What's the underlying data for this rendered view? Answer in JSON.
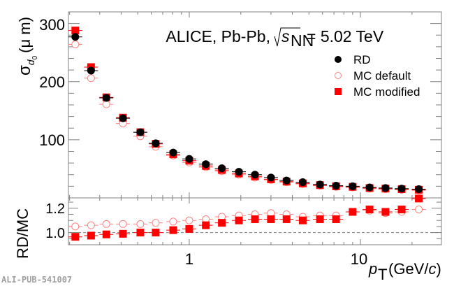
{
  "chart_data": [
    {
      "type": "scatter",
      "panel": "top",
      "title": "ALICE, Pb-Pb,",
      "title_energy": "= 5.02 TeV",
      "title_sqrt_symbol": "s",
      "title_sqrt_subscript": "NN",
      "xlabel": "p",
      "xlabel_subscript": "T",
      "xlabel_unit_open": "(GeV/",
      "xlabel_unit_c": "c",
      "xlabel_unit_close": ")",
      "ylabel_symbol": "σ",
      "ylabel_subscript": "d",
      "ylabel_subsubscript": "0",
      "ylabel_unit": "(μ m)",
      "xscale": "log",
      "xlim": [
        0.197,
        29.7
      ],
      "ylim": [
        0,
        320
      ],
      "yticks": [
        100,
        200,
        300
      ],
      "ytick_labels": [
        "100",
        "200",
        "300"
      ],
      "legend_position": "top-right",
      "x": [
        0.216,
        0.267,
        0.328,
        0.41,
        0.518,
        0.637,
        0.806,
        1.0,
        1.25,
        1.55,
        1.95,
        2.42,
        3.0,
        3.7,
        4.6,
        5.8,
        7.2,
        9.0,
        11.3,
        14.0,
        17.4,
        21.9
      ],
      "series": [
        {
          "name": "RD",
          "marker": "filled-circle",
          "color": "#000000",
          "values": [
            277,
            219,
            172,
            137,
            113,
            94,
            78,
            67,
            58,
            51,
            45,
            40,
            35,
            30,
            27,
            23,
            21,
            20,
            18,
            17,
            16,
            15
          ]
        },
        {
          "name": "MC default",
          "marker": "open-circle",
          "color": "#ff0000",
          "values": [
            264,
            206,
            161,
            128,
            106,
            88,
            73,
            61,
            53,
            46,
            40,
            35,
            31,
            27,
            24,
            21,
            19,
            18,
            16,
            15,
            14,
            13
          ]
        },
        {
          "name": "MC modified",
          "marker": "filled-square",
          "color": "#ff0000",
          "values": [
            288,
            225,
            173,
            138,
            113,
            93,
            75,
            64,
            55,
            48,
            42,
            37,
            32,
            28,
            25,
            22,
            20,
            19,
            17,
            16,
            15,
            14
          ]
        }
      ]
    },
    {
      "type": "scatter",
      "panel": "bottom",
      "ylabel": "RD/MC",
      "xscale": "log",
      "xlim": [
        0.197,
        29.7
      ],
      "ylim": [
        0.9,
        1.285
      ],
      "yticks": [
        1.0,
        1.2
      ],
      "ytick_labels": [
        "1.0",
        "1.2"
      ],
      "xticks": [
        1,
        10
      ],
      "xtick_labels": [
        "1",
        "10"
      ],
      "reference_line": 1.0,
      "x": [
        0.216,
        0.267,
        0.328,
        0.41,
        0.518,
        0.637,
        0.806,
        1.0,
        1.25,
        1.55,
        1.95,
        2.42,
        3.0,
        3.7,
        4.6,
        5.8,
        7.2,
        9.0,
        11.3,
        14.0,
        17.4,
        21.9
      ],
      "series": [
        {
          "name": "MC default",
          "marker": "open-circle",
          "color": "#ff0000",
          "values": [
            1.05,
            1.06,
            1.07,
            1.07,
            1.07,
            1.08,
            1.09,
            1.1,
            1.11,
            1.13,
            1.14,
            1.15,
            1.16,
            1.15,
            1.13,
            1.14,
            1.14,
            1.17,
            1.18,
            1.16,
            1.17,
            1.19
          ]
        },
        {
          "name": "MC modified",
          "marker": "filled-square",
          "color": "#ff0000",
          "values": [
            0.965,
            0.975,
            0.985,
            0.99,
            1.0,
            1.0,
            1.02,
            1.03,
            1.06,
            1.08,
            1.1,
            1.11,
            1.11,
            1.11,
            1.1,
            1.11,
            1.11,
            1.17,
            1.19,
            1.17,
            1.19,
            1.28
          ]
        }
      ]
    }
  ],
  "publication_id": "ALI-PUB-541007",
  "colors": {
    "rd": "#000000",
    "mc": "#ff0000",
    "frame": "#808080",
    "pub_id": "#a0a0a0"
  }
}
